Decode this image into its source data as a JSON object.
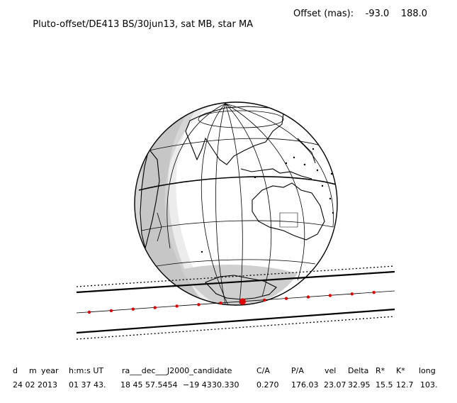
{
  "header": {
    "title": "Pluto-offset/DE413 BS/30jun13, sat MB, star MA",
    "offset_label": "Offset (mas):",
    "offset_ra": "-93.0",
    "offset_dec": "188.0"
  },
  "map": {
    "chart_data": {
      "type": "occultation-map",
      "shadow_points": 14,
      "central_point_index": 7
    }
  },
  "table": {
    "headers": [
      "d",
      "m",
      "year",
      "h:m:s UT",
      "ra___dec___J2000_candidate",
      "C/A",
      "P/A",
      "vel",
      "Delta",
      "R*",
      "K*",
      "long"
    ],
    "values": [
      "24 02 2013",
      "01 37 43.",
      "18 45 57.5454",
      "−19 43",
      "30.330",
      "0.270",
      "176.03",
      "23.07",
      "32.95",
      "15.5",
      "12.7",
      "103."
    ]
  },
  "colors": {
    "shadow_point": "#e00000",
    "night_shade": "#d6d6d6",
    "twilight_shade": "#b4b4b4"
  }
}
